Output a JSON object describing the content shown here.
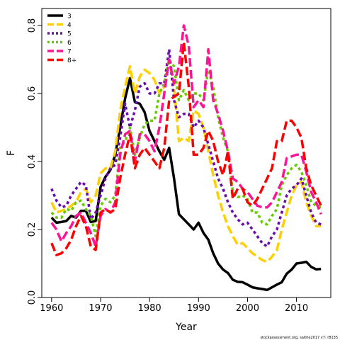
{
  "chart_data": {
    "type": "line",
    "title": "",
    "xlabel": "Year",
    "ylabel": "F",
    "xlim": [
      1958,
      2017
    ],
    "ylim": [
      0,
      0.85
    ],
    "x_ticks": [
      1960,
      1970,
      1980,
      1990,
      2000,
      2010
    ],
    "x_tick_labels": [
      "1960",
      "1970",
      "1980",
      "1990",
      "2000",
      "2010"
    ],
    "y_ticks": [
      0.0,
      0.2,
      0.4,
      0.6,
      0.8
    ],
    "y_tick_labels": [
      "0.0",
      "0.2",
      "0.4",
      "0.6",
      "0.8"
    ],
    "grid": false,
    "legend_position": "top-left",
    "credit": "stockassessment.org, saithe2017  v7: r8135",
    "x": [
      1960,
      1961,
      1962,
      1963,
      1964,
      1965,
      1966,
      1967,
      1968,
      1969,
      1970,
      1971,
      1972,
      1973,
      1974,
      1975,
      1976,
      1977,
      1978,
      1979,
      1980,
      1981,
      1982,
      1983,
      1984,
      1985,
      1986,
      1987,
      1988,
      1989,
      1990,
      1991,
      1992,
      1993,
      1994,
      1995,
      1996,
      1997,
      1998,
      1999,
      2000,
      2001,
      2002,
      2003,
      2004,
      2005,
      2006,
      2007,
      2008,
      2009,
      2010,
      2011,
      2012,
      2013,
      2014,
      2015
    ],
    "series": [
      {
        "name": "3",
        "color": "#000000",
        "dash": "solid",
        "values": [
          0.235,
          0.22,
          0.222,
          0.225,
          0.24,
          0.235,
          0.255,
          0.255,
          0.222,
          0.225,
          0.325,
          0.355,
          0.375,
          0.42,
          0.5,
          0.585,
          0.645,
          0.575,
          0.57,
          0.545,
          0.49,
          0.46,
          0.43,
          0.405,
          0.44,
          0.35,
          0.245,
          0.23,
          0.215,
          0.2,
          0.22,
          0.19,
          0.17,
          0.13,
          0.1,
          0.082,
          0.072,
          0.052,
          0.046,
          0.045,
          0.038,
          0.03,
          0.027,
          0.025,
          0.022,
          0.03,
          0.038,
          0.045,
          0.07,
          0.082,
          0.1,
          0.102,
          0.105,
          0.09,
          0.083,
          0.084
        ]
      },
      {
        "name": "4",
        "color": "#ffd000",
        "dash": "dash",
        "values": [
          0.28,
          0.25,
          0.255,
          0.26,
          0.27,
          0.28,
          0.31,
          0.32,
          0.28,
          0.3,
          0.365,
          0.38,
          0.38,
          0.43,
          0.55,
          0.62,
          0.68,
          0.6,
          0.65,
          0.67,
          0.66,
          0.64,
          0.6,
          0.62,
          0.7,
          0.62,
          0.46,
          0.47,
          0.46,
          0.55,
          0.54,
          0.5,
          0.43,
          0.36,
          0.3,
          0.25,
          0.21,
          0.18,
          0.155,
          0.16,
          0.145,
          0.13,
          0.12,
          0.11,
          0.105,
          0.12,
          0.14,
          0.2,
          0.25,
          0.3,
          0.33,
          0.34,
          0.28,
          0.24,
          0.21,
          0.21
        ]
      },
      {
        "name": "5",
        "color": "#6a0dad",
        "dash": "dot",
        "values": [
          0.32,
          0.285,
          0.265,
          0.27,
          0.3,
          0.32,
          0.34,
          0.33,
          0.23,
          0.25,
          0.3,
          0.35,
          0.38,
          0.39,
          0.47,
          0.57,
          0.5,
          0.55,
          0.62,
          0.63,
          0.6,
          0.6,
          0.63,
          0.63,
          0.73,
          0.58,
          0.53,
          0.54,
          0.54,
          0.5,
          0.52,
          0.5,
          0.45,
          0.4,
          0.35,
          0.32,
          0.28,
          0.25,
          0.23,
          0.215,
          0.22,
          0.2,
          0.18,
          0.16,
          0.15,
          0.18,
          0.2,
          0.25,
          0.3,
          0.32,
          0.33,
          0.35,
          0.3,
          0.25,
          0.22,
          0.215
        ]
      },
      {
        "name": "6",
        "color": "#66cc00",
        "dash": "dot",
        "values": [
          0.25,
          0.235,
          0.235,
          0.26,
          0.255,
          0.28,
          0.285,
          0.26,
          0.24,
          0.18,
          0.27,
          0.29,
          0.28,
          0.3,
          0.44,
          0.46,
          0.5,
          0.42,
          0.47,
          0.51,
          0.52,
          0.52,
          0.6,
          0.63,
          0.7,
          0.68,
          0.58,
          0.61,
          0.58,
          0.6,
          0.6,
          0.58,
          0.67,
          0.62,
          0.53,
          0.47,
          0.43,
          0.31,
          0.295,
          0.3,
          0.29,
          0.25,
          0.25,
          0.22,
          0.215,
          0.24,
          0.26,
          0.33,
          0.36,
          0.38,
          0.39,
          0.37,
          0.33,
          0.28,
          0.27,
          0.265
        ]
      },
      {
        "name": "7",
        "color": "#ff1493",
        "dash": "dash",
        "values": [
          0.22,
          0.2,
          0.165,
          0.19,
          0.21,
          0.24,
          0.25,
          0.22,
          0.19,
          0.15,
          0.24,
          0.26,
          0.25,
          0.28,
          0.42,
          0.48,
          0.49,
          0.4,
          0.48,
          0.48,
          0.46,
          0.43,
          0.5,
          0.6,
          0.7,
          0.63,
          0.68,
          0.8,
          0.74,
          0.56,
          0.58,
          0.56,
          0.73,
          0.58,
          0.54,
          0.49,
          0.43,
          0.35,
          0.34,
          0.32,
          0.31,
          0.29,
          0.27,
          0.265,
          0.265,
          0.28,
          0.31,
          0.34,
          0.41,
          0.415,
          0.42,
          0.42,
          0.37,
          0.31,
          0.28,
          0.245
        ]
      },
      {
        "name": "8+",
        "color": "#ff0000",
        "dash": "dash",
        "values": [
          0.16,
          0.125,
          0.13,
          0.145,
          0.17,
          0.21,
          0.24,
          0.21,
          0.15,
          0.14,
          0.25,
          0.26,
          0.25,
          0.26,
          0.35,
          0.42,
          0.48,
          0.38,
          0.42,
          0.44,
          0.42,
          0.4,
          0.38,
          0.44,
          0.58,
          0.59,
          0.6,
          0.75,
          0.62,
          0.42,
          0.42,
          0.44,
          0.49,
          0.46,
          0.4,
          0.36,
          0.43,
          0.29,
          0.32,
          0.32,
          0.28,
          0.27,
          0.29,
          0.32,
          0.35,
          0.38,
          0.46,
          0.46,
          0.52,
          0.52,
          0.5,
          0.47,
          0.38,
          0.33,
          0.3,
          0.27
        ]
      }
    ]
  }
}
